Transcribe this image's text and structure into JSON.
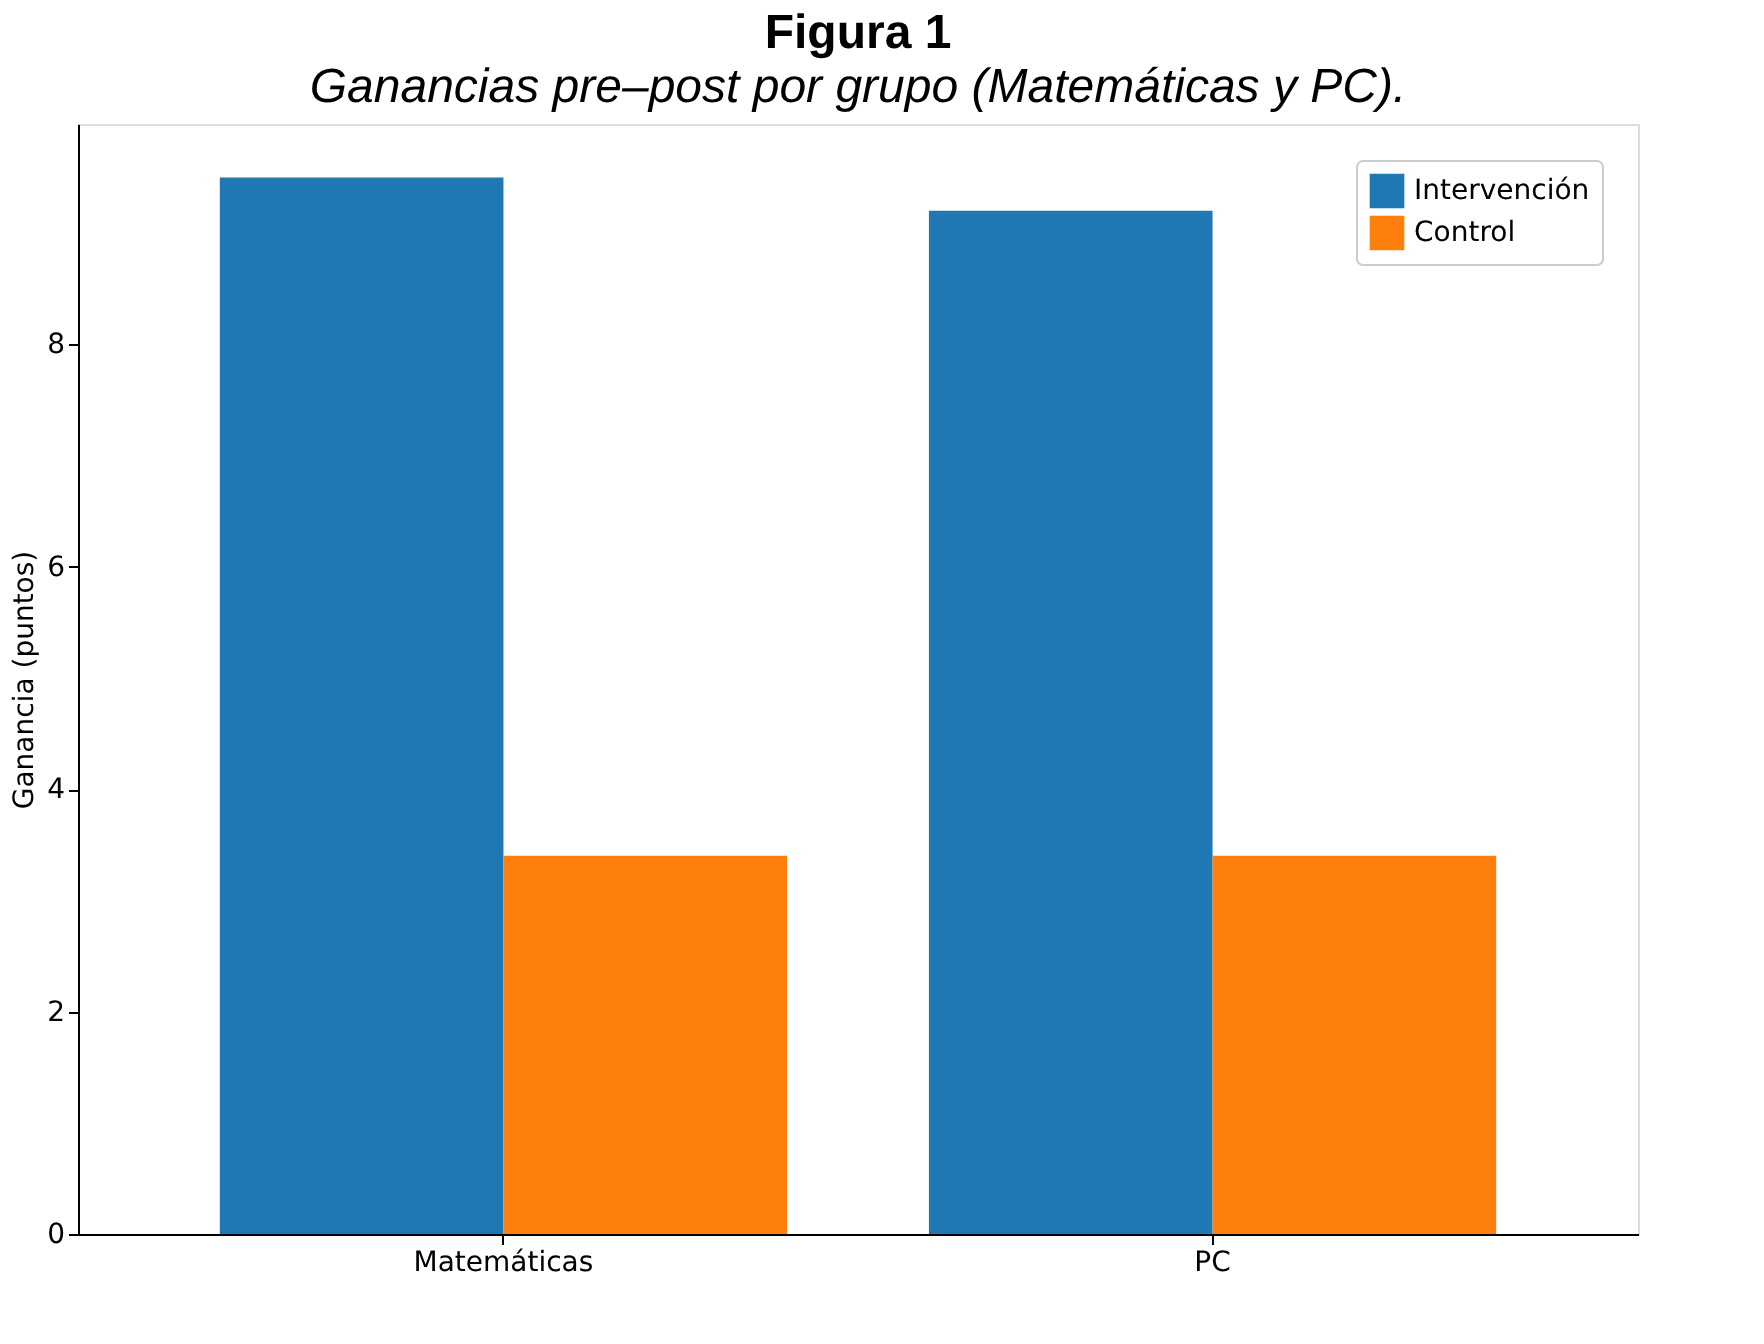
{
  "chart_data": {
    "type": "bar",
    "title": "Figura 1",
    "subtitle": "Ganancias pre–post por grupo (Matemáticas y PC).",
    "ylabel": "Ganancia (puntos)",
    "categories": [
      "Matemáticas",
      "PC"
    ],
    "series": [
      {
        "name": "Intervención",
        "color": "#1f77b4",
        "values": [
          9.5,
          9.2
        ]
      },
      {
        "name": "Control",
        "color": "#ff7f0e",
        "values": [
          3.4,
          3.4
        ]
      }
    ],
    "ylim": [
      0,
      9.98
    ],
    "yticks": [
      0,
      2,
      4,
      6,
      8
    ],
    "grid": false,
    "legend": "top right"
  }
}
